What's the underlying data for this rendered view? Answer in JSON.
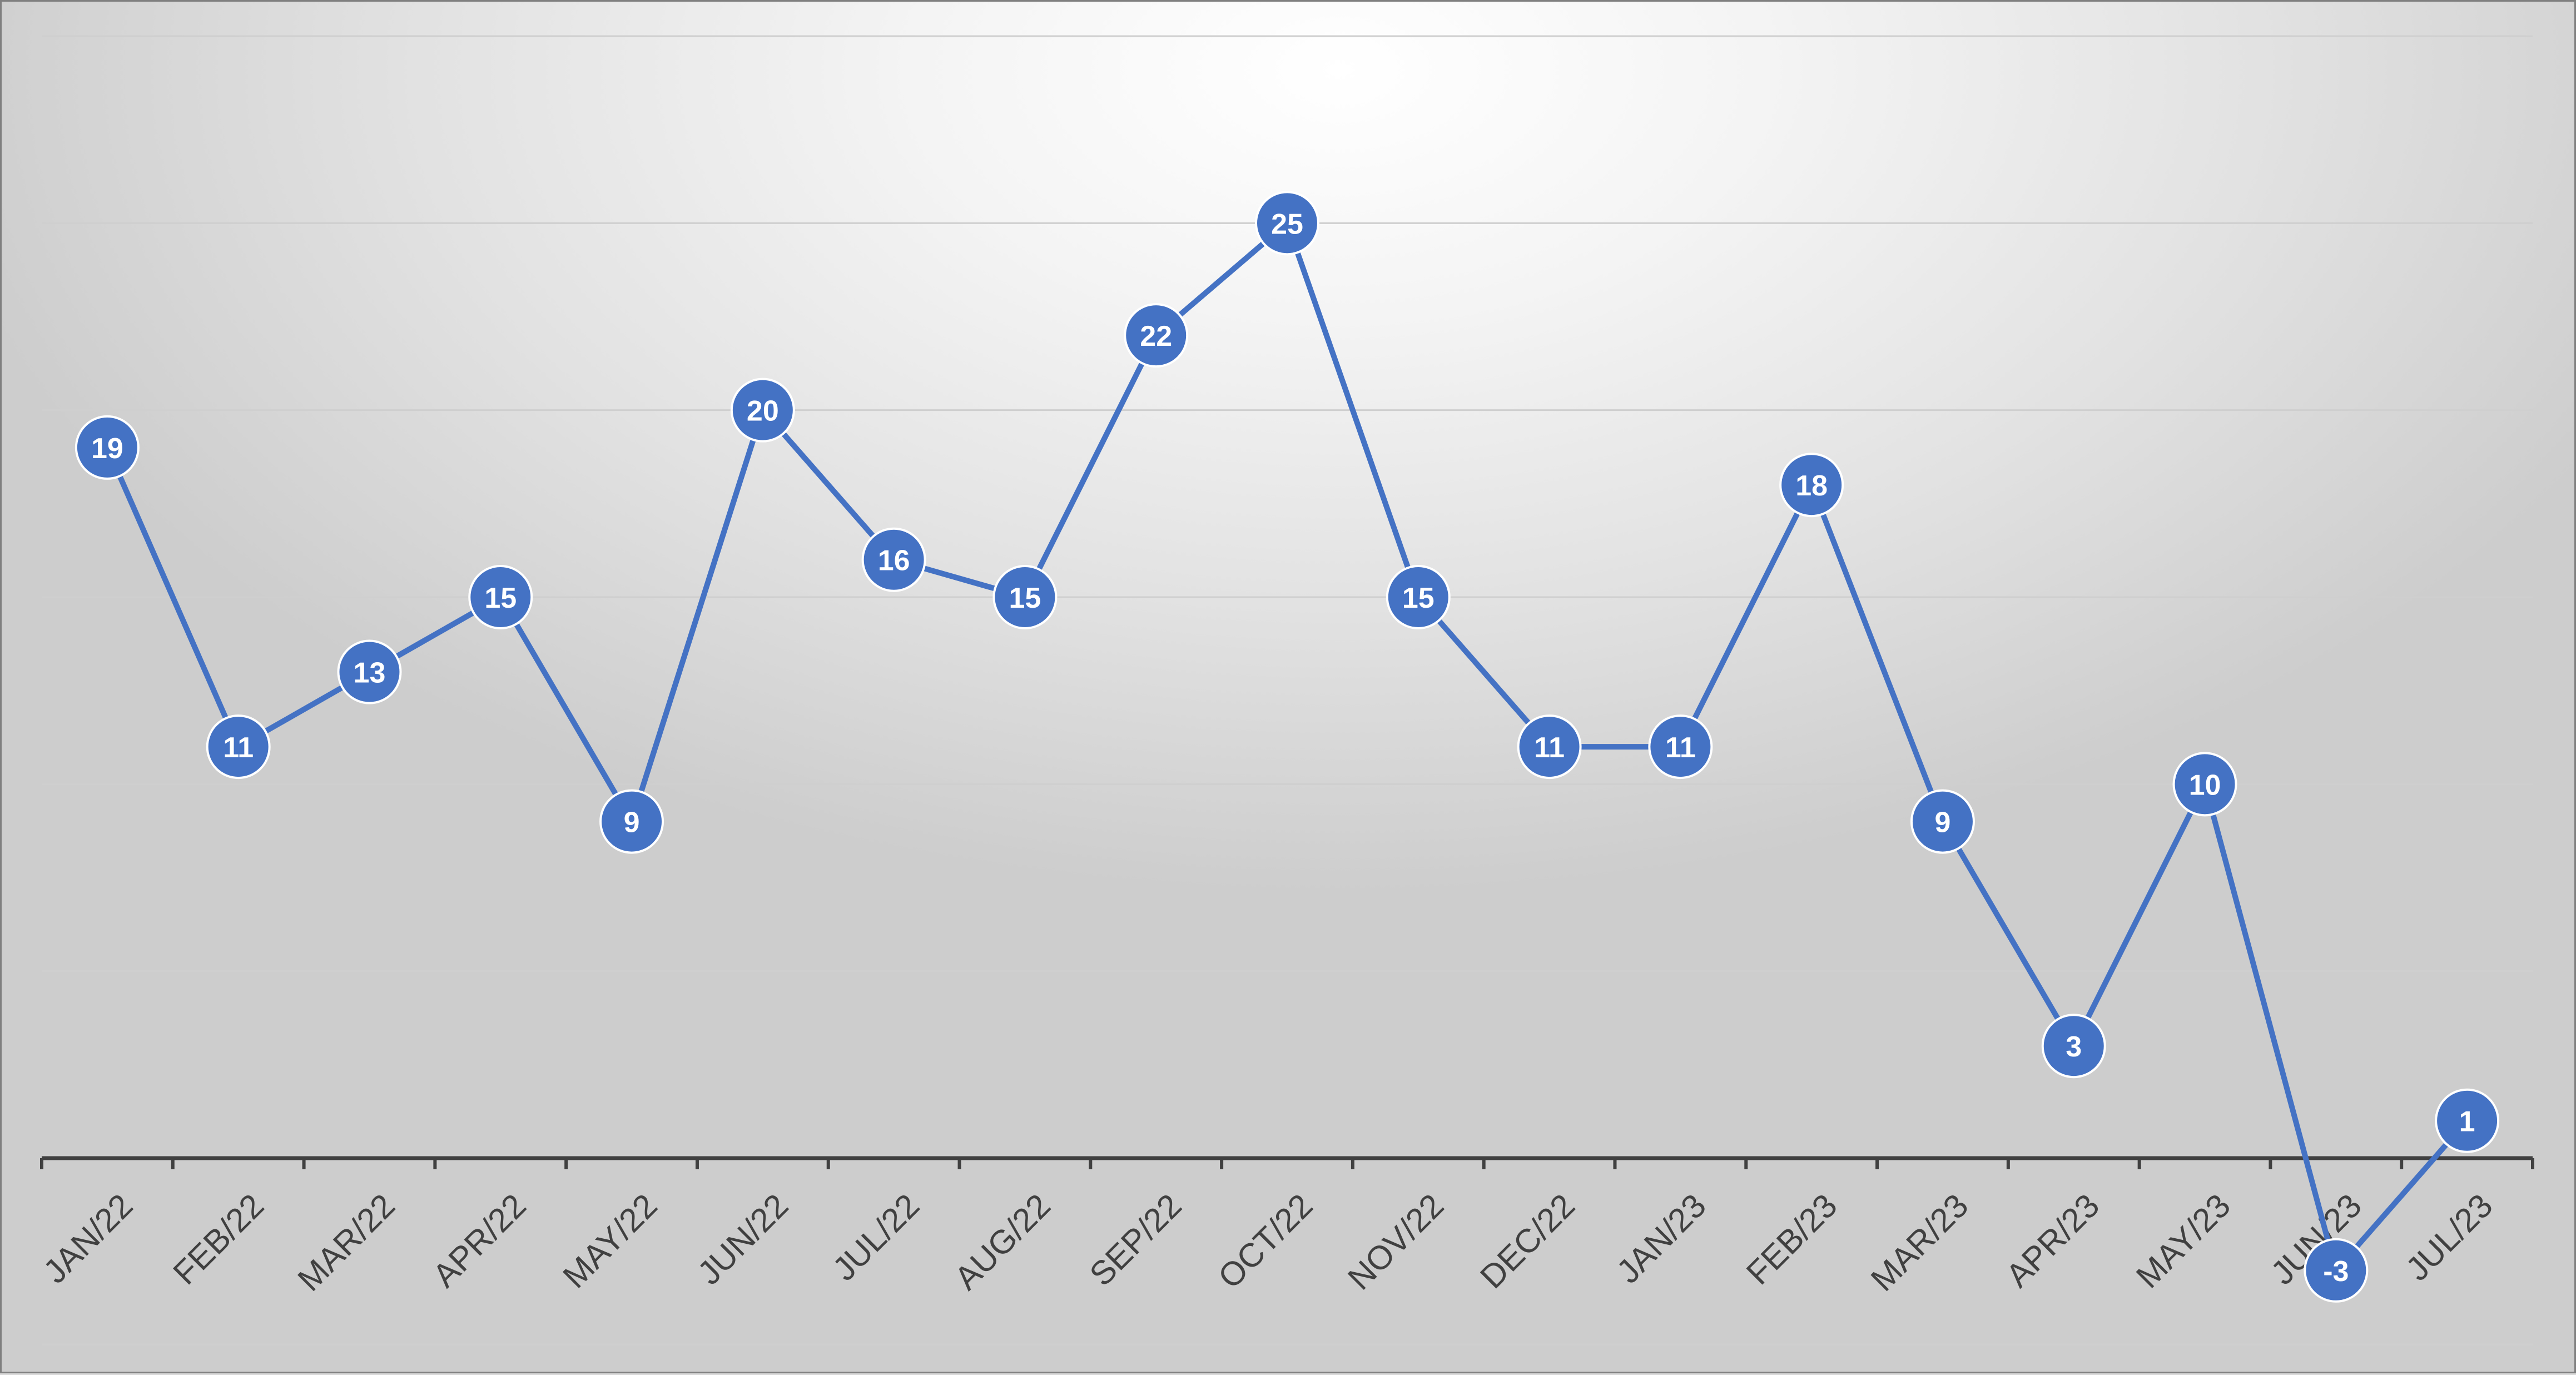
{
  "chart_data": {
    "type": "line",
    "title": "",
    "xlabel": "",
    "ylabel": "",
    "categories": [
      "JAN/22",
      "FEB/22",
      "MAR/22",
      "APR/22",
      "MAY/22",
      "JUN/22",
      "JUL/22",
      "AUG/22",
      "SEP/22",
      "OCT/22",
      "NOV/22",
      "DEC/22",
      "JAN/23",
      "FEB/23",
      "MAR/23",
      "APR/23",
      "MAY/23",
      "JUN/23",
      "JUL/23"
    ],
    "series": [
      {
        "values": [
          19,
          11,
          13,
          15,
          9,
          20,
          16,
          15,
          22,
          25,
          15,
          11,
          11,
          18,
          9,
          3,
          10,
          -3,
          1
        ],
        "color": "#4472c4"
      }
    ],
    "ylim": [
      0,
      30
    ],
    "y_tick_labels_visible": false,
    "data_labels": true,
    "grid": true,
    "legend": "none",
    "marker": "circle"
  }
}
